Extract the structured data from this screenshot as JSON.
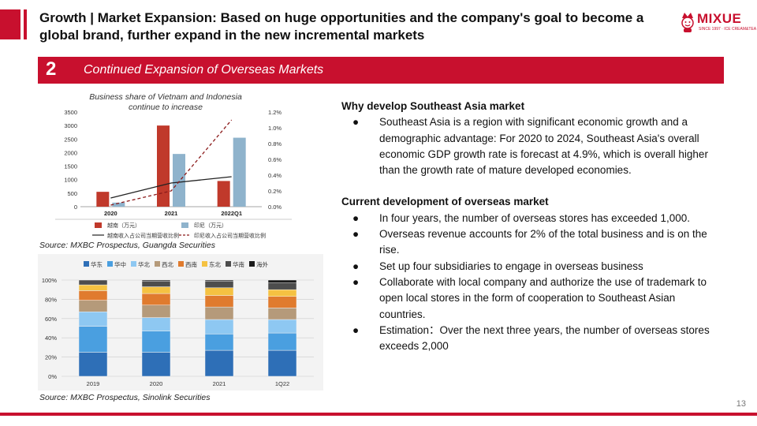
{
  "header": {
    "title": "Growth | Market Expansion: Based on huge opportunities and the company's goal to become a global brand, further expand in the new incremental markets",
    "brand": "MIXUE",
    "brand_sub": "SINCE 1997 · ICE CREAM&TEA"
  },
  "section": {
    "number": "2",
    "title": "Continued Expansion of Overseas Markets"
  },
  "chart1_caption": "Business share of Vietnam and Indonesia continue to increase",
  "source1": "Source: MXBC Prospectus, Guangda Securities",
  "source2": "Source: MXBC Prospectus, Sinolink Securities",
  "chart_data": [
    {
      "type": "bar",
      "categories": [
        "2020",
        "2021",
        "2022Q1"
      ],
      "ylim": [
        0,
        3500
      ],
      "y2lim": [
        0,
        1.2
      ],
      "y_ticks": [
        "0",
        "500",
        "1000",
        "1500",
        "2000",
        "2500",
        "3000",
        "3500"
      ],
      "y2_ticks": [
        "0.0%",
        "0.2%",
        "0.4%",
        "0.6%",
        "0.8%",
        "1.0%",
        "1.2%"
      ],
      "series": [
        {
          "name": "越南（万元）",
          "kind": "bar",
          "color": "#c0392b",
          "values": [
            550,
            3000,
            950
          ]
        },
        {
          "name": "印尼（万元）",
          "kind": "bar",
          "color": "#8fb3cc",
          "values": [
            150,
            1950,
            2550
          ]
        },
        {
          "name": "越南收入占公司当期营收比例",
          "kind": "line",
          "color": "#222222",
          "values": [
            0.11,
            0.3,
            0.38
          ]
        },
        {
          "name": "印尼收入占公司当期营收比例",
          "kind": "dashed-line",
          "color": "#8b1a1a",
          "values": [
            0.02,
            0.2,
            1.1
          ]
        }
      ]
    },
    {
      "type": "bar",
      "stacked": true,
      "categories": [
        "2019",
        "2020",
        "2021",
        "1Q22"
      ],
      "ylim": [
        0,
        100
      ],
      "y_ticks": [
        "0%",
        "20%",
        "40%",
        "60%",
        "80%",
        "100%"
      ],
      "series": [
        {
          "name": "华东",
          "color": "#2e6fb7",
          "values": [
            25,
            25,
            27,
            27
          ]
        },
        {
          "name": "华中",
          "color": "#4a9fe0",
          "values": [
            27,
            22,
            17,
            18
          ]
        },
        {
          "name": "华北",
          "color": "#8ec8f2",
          "values": [
            15,
            14,
            15,
            14
          ]
        },
        {
          "name": "西北",
          "color": "#b59a7a",
          "values": [
            12,
            13,
            13,
            12
          ]
        },
        {
          "name": "西南",
          "color": "#e07b2e",
          "values": [
            10,
            12,
            12,
            12
          ]
        },
        {
          "name": "东北",
          "color": "#f5c242",
          "values": [
            6,
            7,
            8,
            7
          ]
        },
        {
          "name": "华南",
          "color": "#4d4d4d",
          "values": [
            5,
            6,
            7,
            7
          ]
        },
        {
          "name": "海外",
          "color": "#1a1a1a",
          "values": [
            0,
            1,
            1,
            3
          ]
        }
      ]
    }
  ],
  "right": {
    "h1": "Why develop Southeast Asia market",
    "b1": [
      "Southeast Asia is a region with significant economic growth and a demographic advantage: For 2020 to 2024, Southeast Asia's overall economic GDP growth rate is forecast at 4.9%, which is overall higher than the growth rate of mature developed economies."
    ],
    "h2": "Current development of overseas market",
    "b2": [
      "In four years, the number of overseas stores has exceeded 1,000.",
      "Overseas revenue accounts for 2% of the total business and is on the rise.",
      "Set up four subsidiaries to engage in overseas business",
      "Collaborate with local company and authorize the use of trademark to open local stores in the form of cooperation to Southeast Asian countries.",
      "Estimation：Over the next three years, the number of overseas stores exceeds 2,000"
    ],
    "bullet": "●"
  },
  "page_number": "13",
  "colors": {
    "accent": "#c8102e"
  }
}
